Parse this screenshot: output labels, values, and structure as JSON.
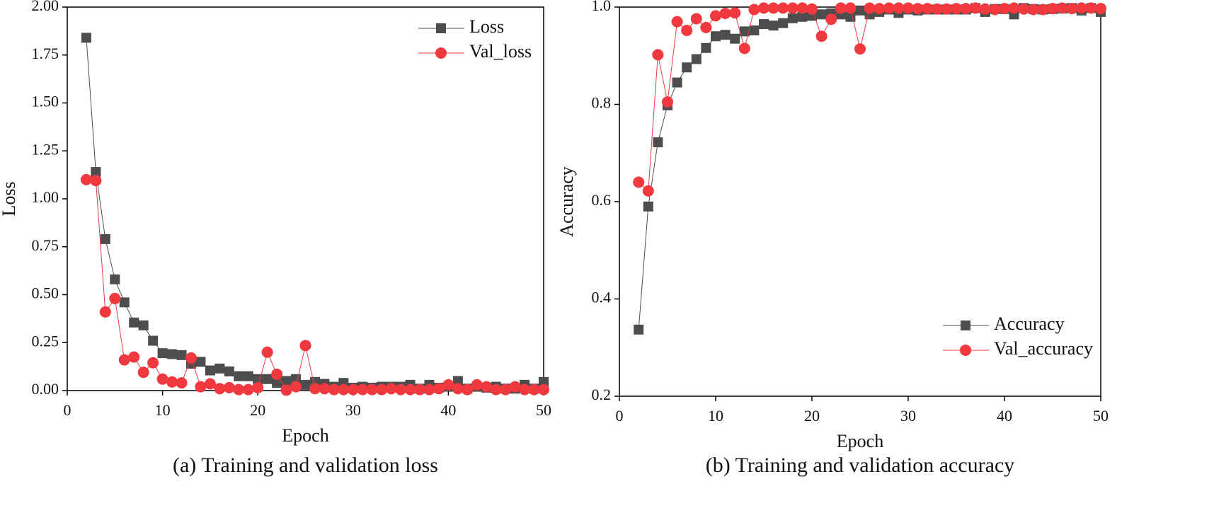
{
  "chart_data": [
    {
      "type": "line",
      "caption": "(a) Training and validation loss",
      "x_label": "Epoch",
      "y_label": "Loss",
      "x": [
        2,
        3,
        4,
        5,
        6,
        7,
        8,
        9,
        10,
        11,
        12,
        13,
        14,
        15,
        16,
        17,
        18,
        19,
        20,
        21,
        22,
        23,
        24,
        25,
        26,
        27,
        28,
        29,
        30,
        31,
        32,
        33,
        34,
        35,
        36,
        37,
        38,
        39,
        40,
        41,
        42,
        43,
        44,
        45,
        46,
        47,
        48,
        49,
        50
      ],
      "series": [
        {
          "name": "Loss",
          "color": "#4d4d4d",
          "marker": "square",
          "values": [
            1.84,
            1.14,
            0.79,
            0.58,
            0.46,
            0.355,
            0.34,
            0.26,
            0.195,
            0.19,
            0.185,
            0.14,
            0.15,
            0.105,
            0.115,
            0.1,
            0.075,
            0.075,
            0.06,
            0.06,
            0.04,
            0.05,
            0.06,
            0.03,
            0.045,
            0.035,
            0.02,
            0.04,
            0.015,
            0.02,
            0.015,
            0.02,
            0.02,
            0.02,
            0.03,
            0.01,
            0.03,
            0.015,
            0.02,
            0.05,
            0.01,
            0.02,
            0.015,
            0.02,
            0.01,
            0.01,
            0.03,
            0.01,
            0.045
          ]
        },
        {
          "name": "Val_loss",
          "color": "#f0393f",
          "marker": "circle",
          "values": [
            1.1,
            1.095,
            0.41,
            0.48,
            0.16,
            0.175,
            0.095,
            0.145,
            0.06,
            0.045,
            0.04,
            0.17,
            0.02,
            0.035,
            0.01,
            0.015,
            0.005,
            0.005,
            0.015,
            0.2,
            0.085,
            0.002,
            0.02,
            0.235,
            0.01,
            0.01,
            0.005,
            0.005,
            0.005,
            0.005,
            0.005,
            0.005,
            0.01,
            0.005,
            0.005,
            0.005,
            0.005,
            0.01,
            0.03,
            0.01,
            0.005,
            0.03,
            0.02,
            0.005,
            0.005,
            0.02,
            0.005,
            0.005,
            0.005
          ]
        }
      ],
      "xlim": [
        0,
        50
      ],
      "xticks": [
        0,
        10,
        20,
        30,
        40,
        50
      ],
      "ylim": [
        0,
        2
      ],
      "yticks": [
        {
          "value": 0,
          "label": "0.00"
        },
        {
          "value": 0.25,
          "label": "0.25"
        },
        {
          "value": 0.5,
          "label": "0.50"
        },
        {
          "value": 0.75,
          "label": "0.75"
        },
        {
          "value": 1,
          "label": "1.00"
        },
        {
          "value": 1.25,
          "label": "1.25"
        },
        {
          "value": 1.5,
          "label": "1.50"
        },
        {
          "value": 1.75,
          "label": "1.75"
        },
        {
          "value": 2,
          "label": "2.00"
        }
      ],
      "legend": "upper right"
    },
    {
      "type": "line",
      "caption": "(b) Training and validation accuracy",
      "x_label": "Epoch",
      "y_label": "Accuracy",
      "x": [
        2,
        3,
        4,
        5,
        6,
        7,
        8,
        9,
        10,
        11,
        12,
        13,
        14,
        15,
        16,
        17,
        18,
        19,
        20,
        21,
        22,
        23,
        24,
        25,
        26,
        27,
        28,
        29,
        30,
        31,
        32,
        33,
        34,
        35,
        36,
        37,
        38,
        39,
        40,
        41,
        42,
        43,
        44,
        45,
        46,
        47,
        48,
        49,
        50
      ],
      "series": [
        {
          "name": "Accuracy",
          "color": "#4d4d4d",
          "marker": "square",
          "values": [
            0.337,
            0.59,
            0.722,
            0.798,
            0.845,
            0.876,
            0.893,
            0.916,
            0.94,
            0.943,
            0.935,
            0.95,
            0.952,
            0.965,
            0.962,
            0.967,
            0.977,
            0.98,
            0.982,
            0.985,
            0.987,
            0.985,
            0.98,
            0.993,
            0.985,
            0.99,
            0.995,
            0.988,
            0.995,
            0.993,
            0.995,
            0.995,
            0.995,
            0.995,
            0.995,
            0.998,
            0.99,
            0.996,
            0.996,
            0.985,
            0.998,
            0.996,
            0.995,
            0.996,
            0.997,
            0.998,
            0.993,
            0.998,
            0.99
          ]
        },
        {
          "name": "Val_accuracy",
          "color": "#f0393f",
          "marker": "circle",
          "values": [
            0.64,
            0.622,
            0.902,
            0.805,
            0.97,
            0.952,
            0.976,
            0.958,
            0.982,
            0.987,
            0.988,
            0.915,
            0.995,
            0.998,
            0.998,
            0.998,
            0.998,
            0.998,
            0.996,
            0.94,
            0.975,
            0.998,
            0.998,
            0.914,
            0.998,
            0.997,
            0.998,
            0.998,
            0.998,
            0.997,
            0.997,
            0.996,
            0.996,
            0.997,
            0.997,
            0.998,
            0.996,
            0.995,
            0.997,
            0.998,
            0.996,
            0.995,
            0.995,
            0.997,
            0.998,
            0.997,
            0.998,
            0.998,
            0.997
          ]
        }
      ],
      "xlim": [
        0,
        50
      ],
      "xticks": [
        0,
        10,
        20,
        30,
        40,
        50
      ],
      "ylim": [
        0.2,
        1
      ],
      "yticks": [
        0.2,
        0.4,
        0.6,
        0.8,
        {
          "value": 1,
          "label": "1.0"
        }
      ],
      "legend": "lower right"
    }
  ]
}
